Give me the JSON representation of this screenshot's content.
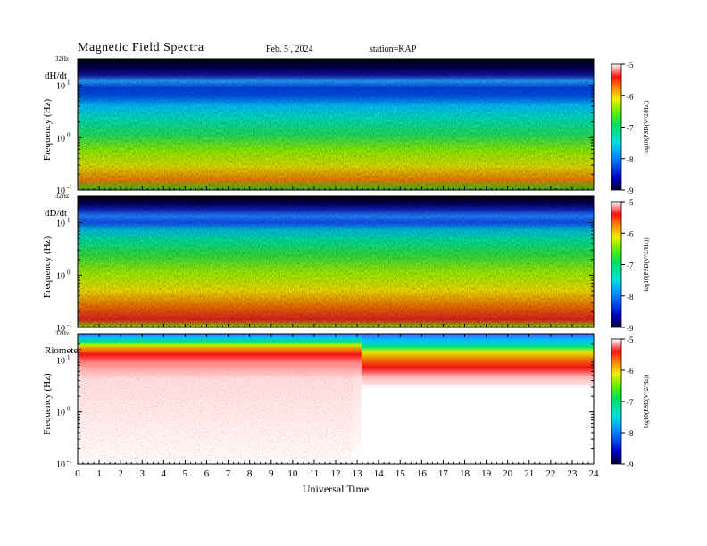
{
  "header": {
    "title": "Magnetic Field Spectra",
    "date": "Feb. 5  , 2024",
    "station": "station=KAP"
  },
  "chart_data": [
    {
      "type": "heatmap",
      "panel_label": "dH/dt",
      "ylabel": "Frequency (Hz)",
      "ytop_label": "32Hz",
      "yticks": [
        "10",
        "10",
        "10"
      ],
      "ytick_exponents": [
        "1",
        "0",
        "-1"
      ],
      "ylog": true,
      "ylim": [
        0.1,
        32
      ],
      "colorbar": {
        "ticks": [
          "-5",
          "-6",
          "-7",
          "-8",
          "-9"
        ],
        "range": [
          -9,
          -5
        ],
        "label": "log10(PSD(V^2/Hz))"
      }
    },
    {
      "type": "heatmap",
      "panel_label": "dD/dt",
      "ylabel": "Frequency (Hz)",
      "ytop_label": "32Hz",
      "yticks": [
        "10",
        "10",
        "10"
      ],
      "ytick_exponents": [
        "1",
        "0",
        "-1"
      ],
      "ylog": true,
      "ylim": [
        0.1,
        32
      ],
      "colorbar": {
        "ticks": [
          "-5",
          "-6",
          "-7",
          "-8",
          "-9"
        ],
        "range": [
          -9,
          -5
        ],
        "label": "log10(PSD(V^2/Hz))"
      }
    },
    {
      "type": "heatmap",
      "panel_label": "Riometer",
      "ylabel": "Frequency (Hz)",
      "ytop_label": "32Hz",
      "yticks": [
        "10",
        "10",
        "10"
      ],
      "ytick_exponents": [
        "1",
        "0",
        "-1"
      ],
      "ylog": true,
      "ylim": [
        0.1,
        32
      ],
      "xlabel": "Universal Time",
      "xticks": [
        "0",
        "1",
        "2",
        "3",
        "4",
        "5",
        "6",
        "7",
        "8",
        "9",
        "10",
        "11",
        "12",
        "13",
        "14",
        "15",
        "16",
        "17",
        "18",
        "19",
        "20",
        "21",
        "22",
        "23",
        "24"
      ],
      "xlim": [
        0,
        24
      ],
      "colorbar": {
        "ticks": [
          "-5",
          "-6",
          "-7",
          "-8",
          "-9"
        ],
        "range": [
          -9,
          -5
        ],
        "label": "log10(PSD(V^2/Hz))"
      }
    }
  ]
}
